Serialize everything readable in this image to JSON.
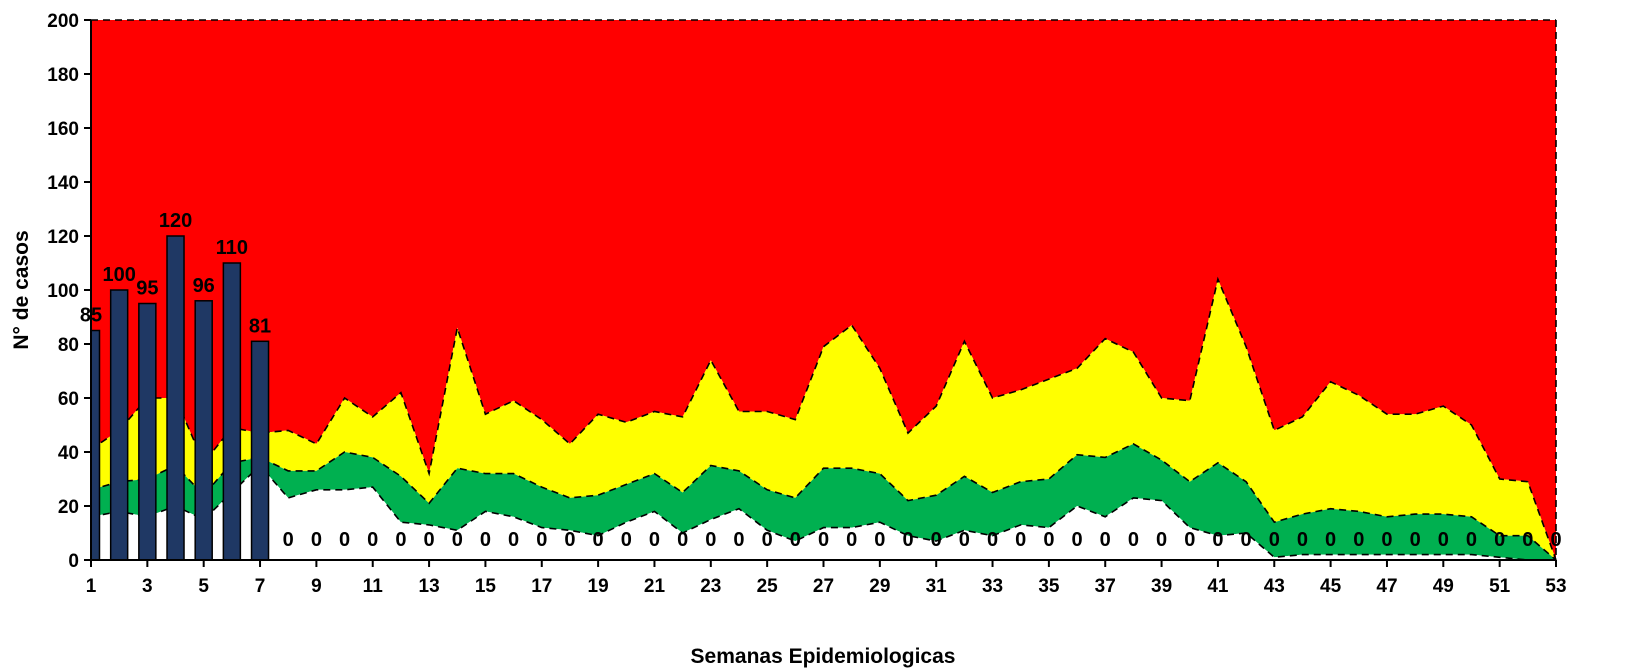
{
  "chart_data": {
    "type": "area",
    "xlabel": "Semanas Epidemiologicas",
    "ylabel": "N° de casos",
    "xlim": [
      1,
      53
    ],
    "ylim": [
      0,
      200
    ],
    "y_ticks": [
      0,
      20,
      40,
      60,
      80,
      100,
      120,
      140,
      160,
      180,
      200
    ],
    "x_ticks": [
      1,
      3,
      5,
      7,
      9,
      11,
      13,
      15,
      17,
      19,
      21,
      23,
      25,
      27,
      29,
      31,
      33,
      35,
      37,
      39,
      41,
      43,
      45,
      47,
      49,
      51,
      53
    ],
    "colors": {
      "epidemic": "#ff0000",
      "alert": "#ffff00",
      "safety": "#00b050",
      "success": "#ffffff",
      "bars": "#1f3864"
    },
    "bands": {
      "x": [
        1,
        2,
        3,
        4,
        5,
        6,
        7,
        8,
        9,
        10,
        11,
        12,
        13,
        14,
        15,
        16,
        17,
        18,
        19,
        20,
        21,
        22,
        23,
        24,
        25,
        26,
        27,
        28,
        29,
        30,
        31,
        32,
        33,
        34,
        35,
        36,
        37,
        38,
        39,
        40,
        41,
        42,
        43,
        44,
        45,
        46,
        47,
        48,
        49,
        50,
        51,
        52,
        53
      ],
      "lower": [
        16,
        18,
        16,
        20,
        15,
        25,
        35,
        23,
        26,
        26,
        27,
        14,
        13,
        11,
        18,
        16,
        12,
        11,
        9,
        14,
        18,
        10,
        15,
        19,
        11,
        7,
        12,
        12,
        14,
        9,
        7,
        11,
        9,
        13,
        12,
        20,
        16,
        23,
        22,
        12,
        9,
        10,
        1,
        2,
        2,
        2,
        2,
        2,
        2,
        2,
        1,
        0,
        0
      ],
      "middle": [
        26,
        29,
        30,
        35,
        24,
        36,
        38,
        33,
        33,
        40,
        38,
        31,
        21,
        34,
        32,
        32,
        27,
        23,
        24,
        28,
        32,
        25,
        35,
        33,
        26,
        23,
        34,
        34,
        32,
        22,
        24,
        31,
        25,
        29,
        30,
        39,
        38,
        43,
        37,
        29,
        36,
        29,
        14,
        17,
        19,
        18,
        16,
        17,
        17,
        16,
        9,
        9,
        0
      ],
      "upper": [
        41,
        48,
        60,
        60,
        36,
        49,
        47,
        48,
        43,
        60,
        53,
        62,
        32,
        86,
        54,
        59,
        52,
        43,
        54,
        51,
        55,
        53,
        74,
        55,
        55,
        52,
        79,
        87,
        71,
        47,
        57,
        81,
        60,
        63,
        67,
        71,
        82,
        77,
        60,
        59,
        104,
        79,
        48,
        53,
        66,
        61,
        54,
        54,
        57,
        50,
        30,
        29,
        0
      ],
      "top": 200
    },
    "bars": {
      "x": [
        1,
        2,
        3,
        4,
        5,
        6,
        7
      ],
      "values": [
        85,
        100,
        95,
        120,
        96,
        110,
        81
      ]
    },
    "zero_labels": {
      "x": [
        8,
        9,
        10,
        11,
        12,
        13,
        14,
        15,
        16,
        17,
        18,
        19,
        20,
        21,
        22,
        23,
        24,
        25,
        26,
        27,
        28,
        29,
        30,
        31,
        32,
        33,
        34,
        35,
        36,
        37,
        38,
        39,
        40,
        41,
        42,
        43,
        44,
        45,
        46,
        47,
        48,
        49,
        50,
        51,
        52,
        53
      ],
      "text": "0"
    }
  }
}
